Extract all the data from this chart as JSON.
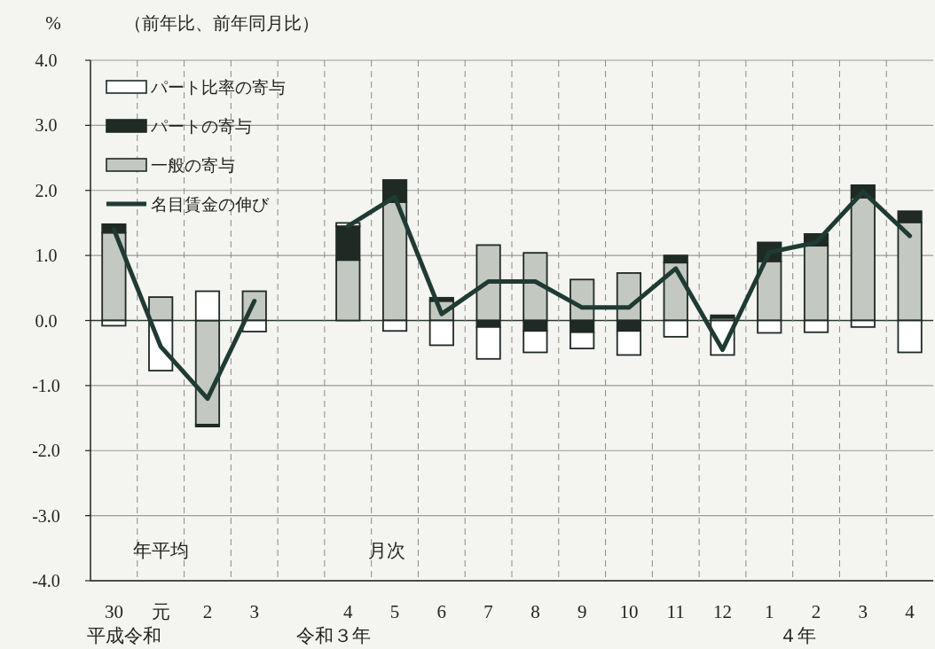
{
  "chart_data": {
    "type": "bar",
    "stacked": true,
    "ylabel": "%",
    "annotations": [
      "（前年比、前年同月比）",
      "年平均",
      "月次",
      "平成",
      "令和",
      "令和３年",
      "４年"
    ],
    "categories": [
      "30",
      "元",
      "2",
      "3",
      null,
      "4",
      "5",
      "6",
      "7",
      "8",
      "9",
      "10",
      "11",
      "12",
      "1",
      "2",
      "3",
      "4"
    ],
    "ylim": [
      -4,
      4
    ],
    "yticks": [
      {
        "value": 4,
        "label": "4.0"
      },
      {
        "value": 3,
        "label": "3.0"
      },
      {
        "value": 2,
        "label": "2.0"
      },
      {
        "value": 1,
        "label": "1.0"
      },
      {
        "value": 0,
        "label": "0.0"
      },
      {
        "value": -1,
        "label": "-1.0"
      },
      {
        "value": -2,
        "label": "-2.0"
      },
      {
        "value": -3,
        "label": "-3.0"
      },
      {
        "value": -4,
        "label": "-4.0"
      }
    ],
    "grid": true,
    "legend": "top left",
    "series": [
      {
        "name": "一般の寄与",
        "color": "#c3c8c0",
        "values": [
          1.35,
          0.36,
          -1.6,
          0.45,
          null,
          0.93,
          1.82,
          0.3,
          1.16,
          1.04,
          0.63,
          0.73,
          0.89,
          0.04,
          0.91,
          1.15,
          1.89,
          1.51
        ]
      },
      {
        "name": "パートの寄与",
        "color": "#1f2a25",
        "values": [
          0.13,
          0,
          -0.03,
          0,
          null,
          0.52,
          0.34,
          0.05,
          -0.1,
          -0.16,
          -0.18,
          -0.16,
          0.11,
          0.04,
          0.29,
          0.18,
          0.19,
          0.17
        ]
      },
      {
        "name": "パート比率の寄与",
        "color": "#ffffff",
        "values": [
          -0.08,
          -0.77,
          0.45,
          -0.17,
          null,
          0.05,
          -0.16,
          -0.38,
          -0.49,
          -0.33,
          -0.25,
          -0.37,
          -0.25,
          -0.53,
          -0.19,
          -0.18,
          -0.1,
          -0.49
        ]
      },
      {
        "name": "名目賃金の伸び",
        "type": "line",
        "color": "#1f3b33",
        "values": [
          1.4,
          -0.4,
          -1.2,
          0.3,
          null,
          1.45,
          1.9,
          0.1,
          0.6,
          0.6,
          0.2,
          0.2,
          0.8,
          -0.45,
          1.05,
          1.2,
          1.98,
          1.3
        ]
      }
    ]
  }
}
